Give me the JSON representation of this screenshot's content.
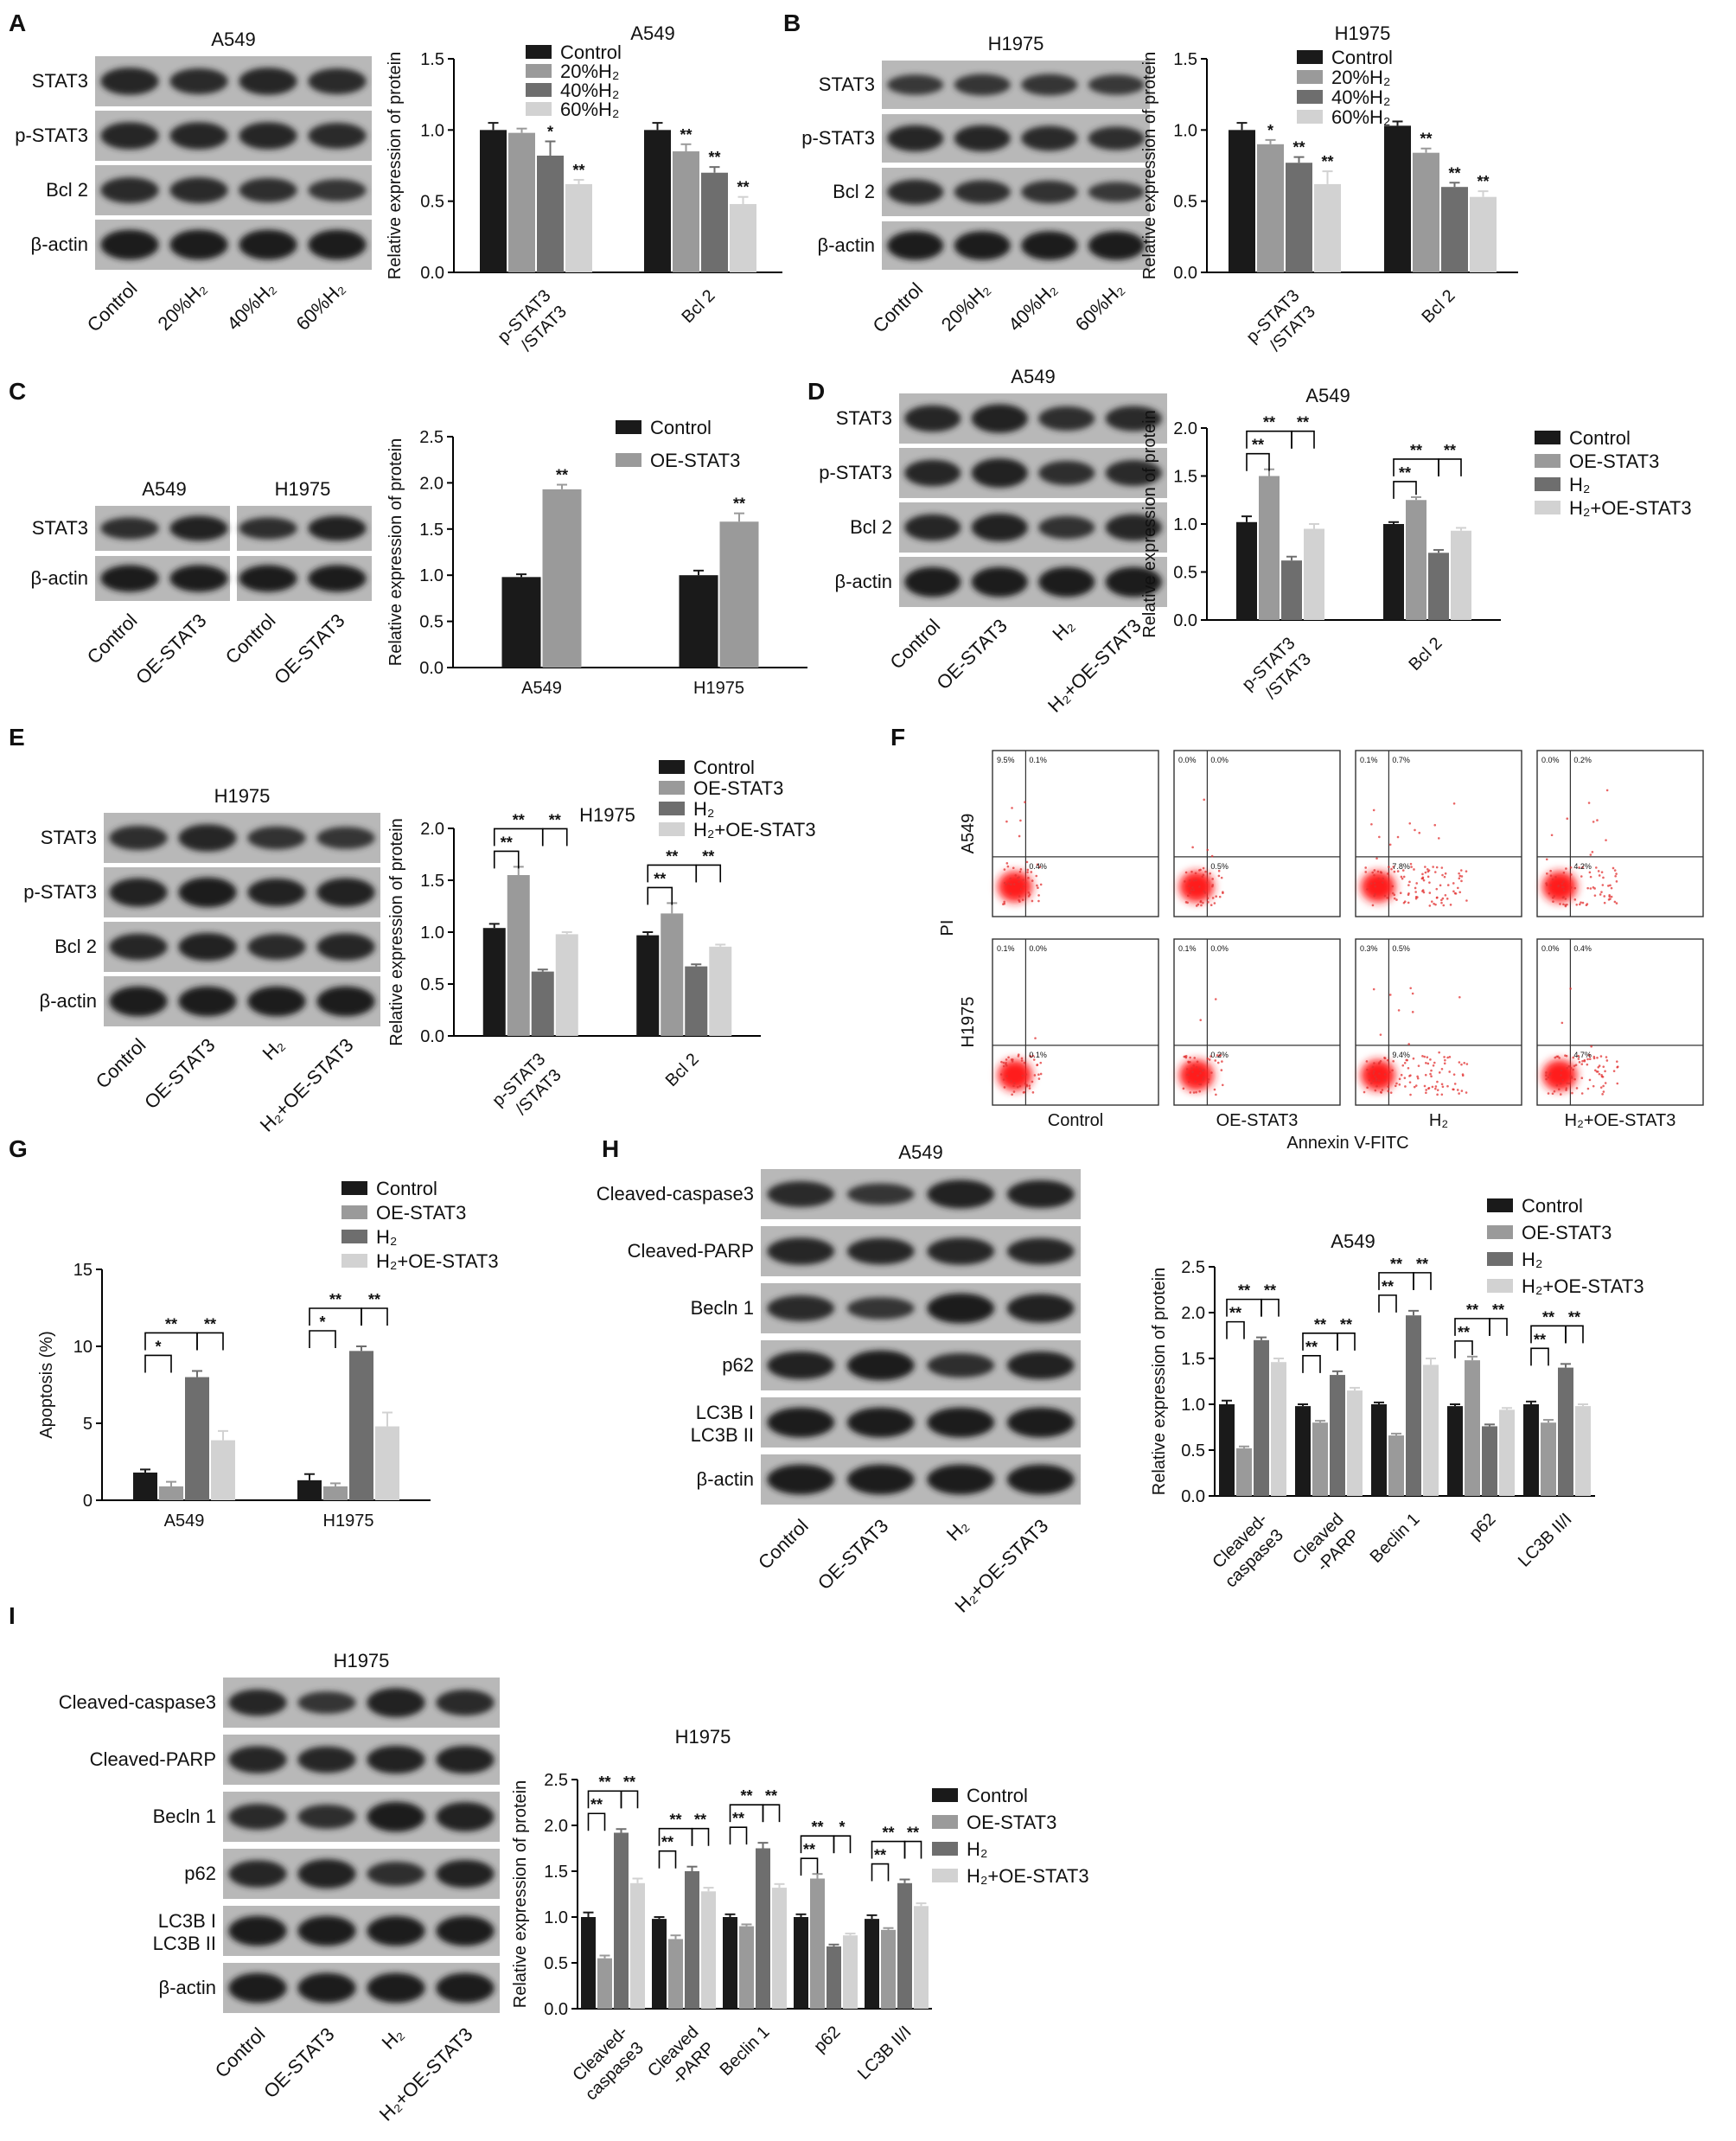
{
  "panel_letters": [
    "A",
    "B",
    "C",
    "D",
    "E",
    "F",
    "G",
    "H",
    "I"
  ],
  "colors": {
    "control": "#1a1a1a",
    "s2": "#9a9a9a",
    "s3": "#6e6e6e",
    "s4": "#d2d2d2"
  },
  "blots": {
    "A": {
      "title": "A549",
      "rows": [
        "STAT3",
        "p-STAT3",
        "Bcl 2",
        "β-actin"
      ],
      "lanes": [
        "Control",
        "20%H₂",
        "40%H₂",
        "60%H₂"
      ]
    },
    "B": {
      "title": "H1975",
      "rows": [
        "STAT3",
        "p-STAT3",
        "Bcl 2",
        "β-actin"
      ],
      "lanes": [
        "Control",
        "20%H₂",
        "40%H₂",
        "60%H₂"
      ]
    },
    "C": {
      "titles": [
        "A549",
        "H1975"
      ],
      "rows": [
        "STAT3",
        "β-actin"
      ],
      "lanes": [
        "Control",
        "OE-STAT3",
        "Control",
        "OE-STAT3"
      ]
    },
    "D": {
      "title": "A549",
      "rows": [
        "STAT3",
        "p-STAT3",
        "Bcl 2",
        "β-actin"
      ],
      "lanes": [
        "Control",
        "OE-STAT3",
        "H₂",
        "H₂+OE-STAT3"
      ]
    },
    "E": {
      "title": "H1975",
      "rows": [
        "STAT3",
        "p-STAT3",
        "Bcl 2",
        "β-actin"
      ],
      "lanes": [
        "Control",
        "OE-STAT3",
        "H₂",
        "H₂+OE-STAT3"
      ]
    },
    "H": {
      "title": "A549",
      "rows": [
        "Cleaved-caspase3",
        "Cleaved-PARP",
        "Becln 1",
        "p62",
        "LC3B I|LC3B II",
        "β-actin"
      ],
      "lanes": [
        "Control",
        "OE-STAT3",
        "H₂",
        "H₂+OE-STAT3"
      ]
    },
    "I": {
      "title": "H1975",
      "rows": [
        "Cleaved-caspase3",
        "Cleaved-PARP",
        "Becln 1",
        "p62",
        "LC3B I|LC3B II",
        "β-actin"
      ],
      "lanes": [
        "Control",
        "OE-STAT3",
        "H₂",
        "H₂+OE-STAT3"
      ]
    }
  },
  "flow": {
    "rows": [
      "A549",
      "H1975"
    ],
    "cols": [
      "Control",
      "OE-STAT3",
      "H₂",
      "H₂+OE-STAT3"
    ],
    "xlabel": "Annexin V-FITC",
    "ylabel": "PI",
    "quadrant_text": [
      [
        [
          "9.5%",
          "0.1%",
          "0.4%"
        ],
        [
          "0.0%",
          "0.0%",
          "0.5%"
        ],
        [
          "0.1%",
          "0.7%",
          "7.8%"
        ],
        [
          "0.0%",
          "0.2%",
          "4.2%"
        ]
      ],
      [
        [
          "0.1%",
          "0.0%",
          "0.1%"
        ],
        [
          "0.1%",
          "0.0%",
          "0.2%"
        ],
        [
          "0.3%",
          "0.5%",
          "9.4%"
        ],
        [
          "0.0%",
          "0.4%",
          "4.7%"
        ]
      ]
    ]
  },
  "chart_data": [
    {
      "panel": "A",
      "type": "bar",
      "title": "A549",
      "ylabel": "Relative expression of protein",
      "ylim": [
        0,
        1.5
      ],
      "yticks": [
        "0.0",
        "0.5",
        "1.0",
        "1.5"
      ],
      "categories": [
        "p-STAT3|/STAT3",
        "Bcl 2"
      ],
      "legend": "top-right",
      "series": [
        {
          "name": "Control",
          "values": [
            1.0,
            1.0
          ],
          "err": [
            0.05,
            0.05
          ],
          "sig": [
            "",
            ""
          ]
        },
        {
          "name": "20%H₂",
          "values": [
            0.98,
            0.85
          ],
          "err": [
            0.03,
            0.05
          ],
          "sig": [
            "",
            "**"
          ]
        },
        {
          "name": "40%H₂",
          "values": [
            0.82,
            0.7
          ],
          "err": [
            0.1,
            0.04
          ],
          "sig": [
            "*",
            "**"
          ]
        },
        {
          "name": "60%H₂",
          "values": [
            0.62,
            0.48
          ],
          "err": [
            0.03,
            0.05
          ],
          "sig": [
            "**",
            "**"
          ]
        }
      ]
    },
    {
      "panel": "B",
      "type": "bar",
      "title": "H1975",
      "ylabel": "Relative expression of protein",
      "ylim": [
        0,
        1.5
      ],
      "yticks": [
        "0.0",
        "0.5",
        "1.0",
        "1.5"
      ],
      "categories": [
        "p-STAT3|/STAT3",
        "Bcl 2"
      ],
      "legend": "top-right",
      "series": [
        {
          "name": "Control",
          "values": [
            1.0,
            1.03
          ],
          "err": [
            0.05,
            0.03
          ],
          "sig": [
            "",
            ""
          ]
        },
        {
          "name": "20%H₂",
          "values": [
            0.9,
            0.84
          ],
          "err": [
            0.03,
            0.03
          ],
          "sig": [
            "*",
            "**"
          ]
        },
        {
          "name": "40%H₂",
          "values": [
            0.77,
            0.6
          ],
          "err": [
            0.04,
            0.03
          ],
          "sig": [
            "**",
            "**"
          ]
        },
        {
          "name": "60%H₂",
          "values": [
            0.62,
            0.53
          ],
          "err": [
            0.09,
            0.04
          ],
          "sig": [
            "**",
            "**"
          ]
        }
      ]
    },
    {
      "panel": "C",
      "type": "bar",
      "title": "",
      "ylabel": "Relative expression of protein",
      "ylim": [
        0,
        2.5
      ],
      "yticks": [
        "0.0",
        "0.5",
        "1.0",
        "1.5",
        "2.0",
        "2.5"
      ],
      "categories": [
        "A549",
        "H1975"
      ],
      "legend": "top-right",
      "series": [
        {
          "name": "Control",
          "values": [
            0.98,
            1.0
          ],
          "err": [
            0.03,
            0.05
          ],
          "sig": [
            "",
            ""
          ]
        },
        {
          "name": "OE-STAT3",
          "values": [
            1.93,
            1.58
          ],
          "err": [
            0.05,
            0.09
          ],
          "sig": [
            "**",
            "**"
          ]
        }
      ]
    },
    {
      "panel": "D",
      "type": "bar",
      "title": "A549",
      "ylabel": "Relative expression of protein",
      "ylim": [
        0,
        2.0
      ],
      "yticks": [
        "0.0",
        "0.5",
        "1.0",
        "1.5",
        "2.0"
      ],
      "categories": [
        "p-STAT3|/STAT3",
        "Bcl 2"
      ],
      "legend": "right",
      "series": [
        {
          "name": "Control",
          "values": [
            1.02,
            1.0
          ],
          "err": [
            0.06,
            0.02
          ],
          "sig": [
            "",
            ""
          ]
        },
        {
          "name": "OE-STAT3",
          "values": [
            1.5,
            1.25
          ],
          "err": [
            0.07,
            0.03
          ],
          "sig": [
            "",
            ""
          ]
        },
        {
          "name": "H₂",
          "values": [
            0.62,
            0.7
          ],
          "err": [
            0.04,
            0.03
          ],
          "sig": [
            "",
            ""
          ]
        },
        {
          "name": "H₂+OE-STAT3",
          "values": [
            0.95,
            0.93
          ],
          "err": [
            0.05,
            0.03
          ],
          "sig": [
            "",
            ""
          ]
        }
      ],
      "brackets": [
        [
          0,
          0,
          1,
          "**"
        ],
        [
          0,
          0,
          2,
          "**"
        ],
        [
          0,
          2,
          3,
          "**"
        ],
        [
          1,
          0,
          1,
          "**"
        ],
        [
          1,
          0,
          2,
          "**"
        ],
        [
          1,
          2,
          3,
          "**"
        ]
      ]
    },
    {
      "panel": "E",
      "type": "bar",
      "title": "H1975",
      "ylabel": "Relative expression of protein",
      "ylim": [
        0,
        2.0
      ],
      "yticks": [
        "0.0",
        "0.5",
        "1.0",
        "1.5",
        "2.0"
      ],
      "categories": [
        "p-STAT3|/STAT3",
        "Bcl 2"
      ],
      "legend": "top-right",
      "series": [
        {
          "name": "Control",
          "values": [
            1.04,
            0.97
          ],
          "err": [
            0.04,
            0.03
          ],
          "sig": [
            "",
            ""
          ]
        },
        {
          "name": "OE-STAT3",
          "values": [
            1.55,
            1.18
          ],
          "err": [
            0.08,
            0.1
          ],
          "sig": [
            "",
            ""
          ]
        },
        {
          "name": "H₂",
          "values": [
            0.62,
            0.67
          ],
          "err": [
            0.02,
            0.02
          ],
          "sig": [
            "",
            ""
          ]
        },
        {
          "name": "H₂+OE-STAT3",
          "values": [
            0.98,
            0.86
          ],
          "err": [
            0.02,
            0.02
          ],
          "sig": [
            "",
            ""
          ]
        }
      ],
      "brackets": [
        [
          0,
          0,
          1,
          "**"
        ],
        [
          0,
          0,
          2,
          "**"
        ],
        [
          0,
          2,
          3,
          "**"
        ],
        [
          1,
          0,
          1,
          "**"
        ],
        [
          1,
          0,
          2,
          "**"
        ],
        [
          1,
          2,
          3,
          "**"
        ]
      ]
    },
    {
      "panel": "G",
      "type": "bar",
      "title": "",
      "ylabel": "Apoptosis (%)",
      "ylim": [
        0,
        15
      ],
      "yticks": [
        "0",
        "5",
        "10",
        "15"
      ],
      "categories": [
        "A549",
        "H1975"
      ],
      "legend": "top",
      "series": [
        {
          "name": "Control",
          "values": [
            1.8,
            1.3
          ],
          "err": [
            0.2,
            0.4
          ],
          "sig": [
            "",
            ""
          ]
        },
        {
          "name": "OE-STAT3",
          "values": [
            0.9,
            0.9
          ],
          "err": [
            0.3,
            0.2
          ],
          "sig": [
            "",
            ""
          ]
        },
        {
          "name": "H₂",
          "values": [
            8.0,
            9.7
          ],
          "err": [
            0.4,
            0.3
          ],
          "sig": [
            "",
            ""
          ]
        },
        {
          "name": "H₂+OE-STAT3",
          "values": [
            3.9,
            4.8
          ],
          "err": [
            0.6,
            0.9
          ],
          "sig": [
            "",
            ""
          ]
        }
      ],
      "brackets": [
        [
          0,
          0,
          1,
          "*"
        ],
        [
          0,
          0,
          2,
          "**"
        ],
        [
          0,
          2,
          3,
          "**"
        ],
        [
          1,
          0,
          1,
          "*"
        ],
        [
          1,
          0,
          2,
          "**"
        ],
        [
          1,
          2,
          3,
          "**"
        ]
      ]
    },
    {
      "panel": "H",
      "type": "bar",
      "title": "A549",
      "ylabel": "Relative expression of protein",
      "ylim": [
        0,
        2.5
      ],
      "yticks": [
        "0.0",
        "0.5",
        "1.0",
        "1.5",
        "2.0",
        "2.5"
      ],
      "categories": [
        "Cleaved-|caspase3",
        "Cleaved|-PARP",
        "Beclin 1",
        "p62",
        "LC3B II/I"
      ],
      "legend": "top-right",
      "series": [
        {
          "name": "Control",
          "values": [
            1.0,
            0.98,
            1.0,
            0.98,
            1.0
          ],
          "err": [
            0.04,
            0.02,
            0.02,
            0.02,
            0.03
          ],
          "sig": [
            "",
            "",
            "",
            "",
            ""
          ]
        },
        {
          "name": "OE-STAT3",
          "values": [
            0.52,
            0.8,
            0.66,
            1.48,
            0.8
          ],
          "err": [
            0.02,
            0.02,
            0.02,
            0.04,
            0.03
          ],
          "sig": [
            "",
            "",
            "",
            "",
            ""
          ]
        },
        {
          "name": "H₂",
          "values": [
            1.7,
            1.32,
            1.97,
            0.76,
            1.4
          ],
          "err": [
            0.03,
            0.04,
            0.05,
            0.02,
            0.04
          ],
          "sig": [
            "",
            "",
            "",
            "",
            ""
          ]
        },
        {
          "name": "H₂+OE-STAT3",
          "values": [
            1.46,
            1.15,
            1.43,
            0.94,
            0.98
          ],
          "err": [
            0.04,
            0.03,
            0.07,
            0.02,
            0.02
          ],
          "sig": [
            "",
            "",
            "",
            "",
            ""
          ]
        }
      ],
      "brackets": [
        [
          0,
          0,
          1,
          "**"
        ],
        [
          0,
          0,
          2,
          "**"
        ],
        [
          0,
          2,
          3,
          "**"
        ],
        [
          1,
          0,
          1,
          "**"
        ],
        [
          1,
          0,
          2,
          "**"
        ],
        [
          1,
          2,
          3,
          "**"
        ],
        [
          2,
          0,
          1,
          "**"
        ],
        [
          2,
          0,
          2,
          "**"
        ],
        [
          2,
          2,
          3,
          "**"
        ],
        [
          3,
          0,
          1,
          "**"
        ],
        [
          3,
          0,
          2,
          "**"
        ],
        [
          3,
          2,
          3,
          "**"
        ],
        [
          4,
          0,
          1,
          "**"
        ],
        [
          4,
          0,
          2,
          "**"
        ],
        [
          4,
          2,
          3,
          "**"
        ]
      ]
    },
    {
      "panel": "I",
      "type": "bar",
      "title": "H1975",
      "ylabel": "Relative expression of protein",
      "ylim": [
        0,
        2.5
      ],
      "yticks": [
        "0.0",
        "0.5",
        "1.0",
        "1.5",
        "2.0",
        "2.5"
      ],
      "categories": [
        "Cleaved-|caspase3",
        "Cleaved|-PARP",
        "Beclin 1",
        "p62",
        "LC3B II/I"
      ],
      "legend": "right",
      "series": [
        {
          "name": "Control",
          "values": [
            1.0,
            0.98,
            1.0,
            1.0,
            0.98
          ],
          "err": [
            0.05,
            0.02,
            0.03,
            0.03,
            0.04
          ],
          "sig": [
            "",
            "",
            "",
            "",
            ""
          ]
        },
        {
          "name": "OE-STAT3",
          "values": [
            0.55,
            0.76,
            0.9,
            1.42,
            0.86
          ],
          "err": [
            0.03,
            0.04,
            0.02,
            0.05,
            0.02
          ],
          "sig": [
            "",
            "",
            "",
            "",
            ""
          ]
        },
        {
          "name": "H₂",
          "values": [
            1.92,
            1.5,
            1.75,
            0.68,
            1.37
          ],
          "err": [
            0.04,
            0.05,
            0.06,
            0.02,
            0.04
          ],
          "sig": [
            "",
            "",
            "",
            "",
            ""
          ]
        },
        {
          "name": "H₂+OE-STAT3",
          "values": [
            1.37,
            1.28,
            1.32,
            0.8,
            1.12
          ],
          "err": [
            0.05,
            0.04,
            0.04,
            0.02,
            0.03
          ],
          "sig": [
            "",
            "",
            "",
            "",
            ""
          ]
        }
      ],
      "brackets": [
        [
          0,
          0,
          1,
          "**"
        ],
        [
          0,
          0,
          2,
          "**"
        ],
        [
          0,
          2,
          3,
          "**"
        ],
        [
          1,
          0,
          1,
          "**"
        ],
        [
          1,
          0,
          2,
          "**"
        ],
        [
          1,
          2,
          3,
          "**"
        ],
        [
          2,
          0,
          1,
          "**"
        ],
        [
          2,
          0,
          2,
          "**"
        ],
        [
          2,
          2,
          3,
          "**"
        ],
        [
          3,
          0,
          1,
          "**"
        ],
        [
          3,
          0,
          2,
          "**"
        ],
        [
          3,
          2,
          3,
          "*"
        ],
        [
          4,
          0,
          1,
          "**"
        ],
        [
          4,
          0,
          2,
          "**"
        ],
        [
          4,
          2,
          3,
          "**"
        ]
      ]
    }
  ]
}
